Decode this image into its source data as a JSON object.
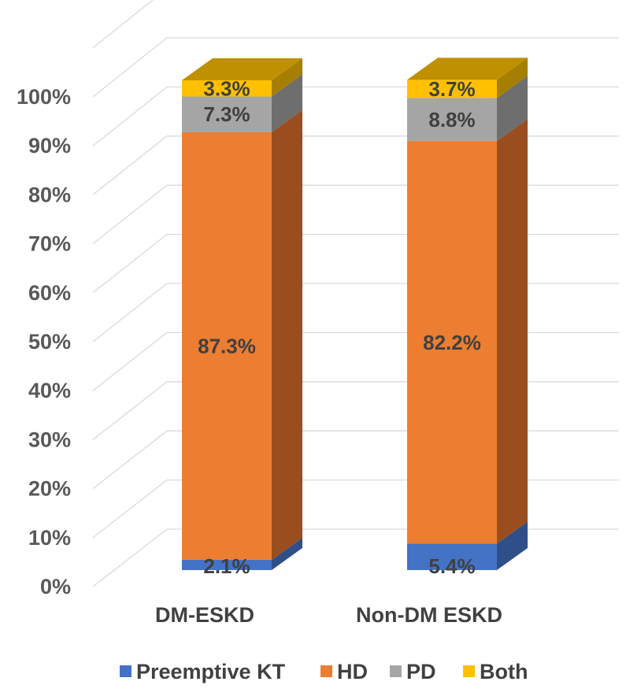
{
  "chart_data": {
    "type": "bar",
    "stacked": true,
    "three_d": true,
    "categories": [
      "DM-ESKD",
      "Non-DM ESKD"
    ],
    "series": [
      {
        "name": "Preemptive KT",
        "values": [
          2.1,
          5.4
        ],
        "labels": [
          "2.1%",
          "5.4%"
        ],
        "color": "#4472c4",
        "side_color": "#2f4f88",
        "top_color": "#4a6fc0"
      },
      {
        "name": "HD",
        "values": [
          87.3,
          82.2
        ],
        "labels": [
          "87.3%",
          "82.2%"
        ],
        "color": "#ed7d31",
        "side_color": "#9a4d1e",
        "top_color": "#c86a2a"
      },
      {
        "name": "PD",
        "values": [
          7.3,
          8.8
        ],
        "labels": [
          "7.3%",
          "8.8%"
        ],
        "color": "#a5a5a5",
        "side_color": "#6e6e6e",
        "top_color": "#8c8c8c"
      },
      {
        "name": "Both",
        "values": [
          3.3,
          3.7
        ],
        "labels": [
          "3.3%",
          "3.7%"
        ],
        "color": "#ffc000",
        "side_color": "#a67f00",
        "top_color": "#bf9000"
      }
    ],
    "yticks": [
      "0%",
      "10%",
      "20%",
      "30%",
      "40%",
      "50%",
      "60%",
      "70%",
      "80%",
      "90%",
      "100%"
    ],
    "ylim": [
      0,
      100
    ],
    "grid": true,
    "legend_position": "bottom",
    "title": "",
    "xlabel": "",
    "ylabel": ""
  }
}
